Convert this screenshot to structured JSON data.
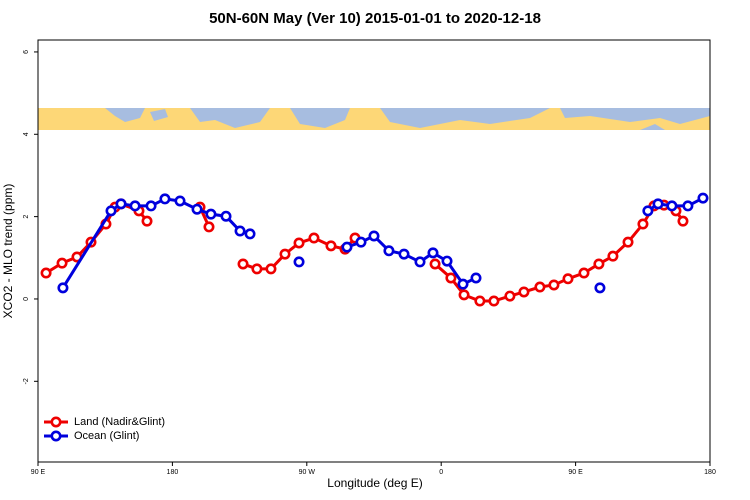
{
  "chart_data": {
    "type": "line",
    "title": "50N-60N May (Ver 10)   2015-01-01 to 2020-12-18",
    "x_label": "Longitude (deg E)",
    "y_label": "XCO2 - MLO trend (ppm)",
    "xlim": [
      90,
      540
    ],
    "xticks": [
      {
        "value": 90,
        "label": "90 E"
      },
      180,
      {
        "value": 270,
        "label": "90 W"
      },
      {
        "value": 360,
        "label": "0"
      },
      {
        "value": 450,
        "label": "90 E"
      },
      {
        "value": 540,
        "label": "180"
      }
    ],
    "ylim": [
      -3.96,
      6.29
    ],
    "yticks": [
      -2,
      0,
      2,
      4,
      6
    ],
    "legend": "bottomleft",
    "series": [
      {
        "name": "Land (Nadir&Glint)",
        "color": "#ee0000",
        "x": [
          95.4,
          106.1,
          116.1,
          125.5,
          135.5,
          141.6,
          145.6,
          157.6,
          163.0,
          null,
          198.5,
          204.5,
          null,
          227.3,
          236.6,
          246.0,
          255.4,
          264.8,
          274.8,
          286.2,
          295.6,
          302.3,
          null,
          355.9,
          366.5,
          375.3,
          385.9,
          395.3,
          406.0,
          415.4,
          426.1,
          435.5,
          444.9,
          455.6,
          465.6,
          475.0,
          485.1,
          495.1,
          502.5,
          509.2,
          517.2,
          521.9
        ],
        "values": [
          0.63,
          0.87,
          1.02,
          1.38,
          1.82,
          2.23,
          2.31,
          2.14,
          1.89,
          null,
          2.23,
          1.75,
          null,
          0.85,
          0.73,
          0.73,
          1.09,
          1.36,
          1.48,
          1.29,
          1.21,
          1.48,
          null,
          0.85,
          0.51,
          0.1,
          -0.05,
          -0.05,
          0.07,
          0.17,
          0.29,
          0.34,
          0.49,
          0.63,
          0.85,
          1.04,
          1.38,
          1.82,
          2.26,
          2.28,
          2.14,
          1.89
        ]
      },
      {
        "name": "Ocean (Glint)",
        "color": "#0000dd",
        "x": [
          106.7,
          138.9,
          145.6,
          155.0,
          165.7,
          175.0,
          185.1,
          196.5,
          205.8,
          215.9,
          225.3,
          232.0,
          null,
          264.8,
          null,
          296.9,
          306.3,
          315.0,
          325.0,
          335.1,
          345.8,
          354.5,
          363.9,
          374.6,
          383.3,
          null,
          466.3,
          null,
          498.4,
          505.2,
          514.5,
          525.2,
          535.3
        ],
        "values": [
          0.27,
          2.14,
          2.31,
          2.26,
          2.26,
          2.43,
          2.38,
          2.18,
          2.06,
          2.01,
          1.65,
          1.58,
          null,
          0.9,
          null,
          1.26,
          1.38,
          1.53,
          1.17,
          1.09,
          0.9,
          1.12,
          0.92,
          0.36,
          0.51,
          null,
          0.27,
          null,
          2.14,
          2.31,
          2.26,
          2.26,
          2.45
        ]
      }
    ]
  }
}
